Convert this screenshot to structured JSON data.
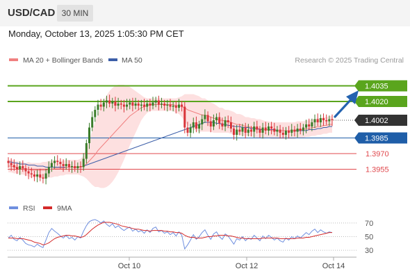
{
  "header": {
    "symbol": "USD/CAD",
    "timeframe": "30 MIN",
    "datetime": "Monday, October 13, 2025 1:05:30 PM CET"
  },
  "legend": {
    "ma20_label": "MA 20 + Bollinger Bands",
    "ma50_label": "MA 50",
    "copyright": "Research © 2025 Trading Central",
    "rsi_label": "RSI",
    "rsi_ma_label": "9MA"
  },
  "colors": {
    "up_candle": "#3a7d2a",
    "down_candle": "#d9343a",
    "ma20": "#f08080",
    "ma50": "#3c5ea8",
    "bollinger_fill": "#fde0e0",
    "resistance": "#5aa51d",
    "support_blue": "#1f5ea8",
    "support_red": "#e0484d",
    "current_price": "#333333",
    "rsi_line": "#6f8fdf",
    "rsi_ma_line": "#d42a2a",
    "arrow": "#2463b0"
  },
  "chart_data": [
    {
      "type": "candlestick",
      "title": "USD/CAD 30 MIN",
      "ylim": [
        1.3934,
        1.4054
      ],
      "x_ticks": [
        "Oct 10",
        "Oct 12",
        "Oct 14"
      ],
      "levels": [
        {
          "value": 1.4035,
          "label": "1.4035",
          "kind": "resistance"
        },
        {
          "value": 1.402,
          "label": "1.4020",
          "kind": "resistance"
        },
        {
          "value": 1.4002,
          "label": "1.4002",
          "kind": "current"
        },
        {
          "value": 1.3985,
          "label": "1.3985",
          "kind": "support"
        },
        {
          "value": 1.397,
          "label": "1.3970",
          "kind": "support-minor"
        },
        {
          "value": 1.3955,
          "label": "1.3955",
          "kind": "support-minor"
        }
      ],
      "close_series": [
        1.3961,
        1.3959,
        1.3957,
        1.3955,
        1.3958,
        1.3956,
        1.3953,
        1.3951,
        1.395,
        1.3948,
        1.395,
        1.3947,
        1.3946,
        1.3951,
        1.3957,
        1.3961,
        1.3963,
        1.3962,
        1.396,
        1.3958,
        1.396,
        1.3957,
        1.3958,
        1.3956,
        1.3958,
        1.3957,
        1.3965,
        1.398,
        1.3995,
        1.4005,
        1.4012,
        1.4017,
        1.4015,
        1.4019,
        1.4021,
        1.4018,
        1.402,
        1.4016,
        1.4018,
        1.4017,
        1.4015,
        1.4017,
        1.4019,
        1.4016,
        1.4018,
        1.4016,
        1.4017,
        1.4015,
        1.4018,
        1.4016,
        1.4019,
        1.4021,
        1.4017,
        1.4018,
        1.4016,
        1.4017,
        1.4015,
        1.4016,
        1.4014,
        1.4017,
        1.4015,
        1.3995,
        1.399,
        1.3995,
        1.4,
        1.3994,
        1.3998,
        1.4003,
        1.4007,
        1.4001,
        1.3996,
        1.4002,
        1.4005,
        1.3999,
        1.3996,
        1.4002,
        1.4,
        1.3994,
        1.3988,
        1.3993,
        1.3991,
        1.3995,
        1.399,
        1.3993,
        1.3991,
        1.3996,
        1.3993,
        1.399,
        1.3995,
        1.3992,
        1.3996,
        1.3994,
        1.3991,
        1.3993,
        1.399,
        1.3988,
        1.3992,
        1.399,
        1.3993,
        1.3991,
        1.3994,
        1.3992,
        1.3995,
        1.3998,
        1.3996,
        1.4,
        1.4003,
        1.4,
        1.4004,
        1.4002,
        1.4001,
        1.4003,
        1.4002
      ],
      "ma20_series": [
        1.3958,
        1.3958,
        1.3957,
        1.3957,
        1.3956,
        1.3956,
        1.3955,
        1.3955,
        1.3954,
        1.3954,
        1.3954,
        1.3954,
        1.3954,
        1.3954,
        1.3955,
        1.3955,
        1.3956,
        1.3956,
        1.3956,
        1.3956,
        1.3957,
        1.3957,
        1.3957,
        1.3957,
        1.3957,
        1.3957,
        1.3958,
        1.396,
        1.3963,
        1.3966,
        1.3969,
        1.3973,
        1.3976,
        1.3979,
        1.3982,
        1.3985,
        1.3988,
        1.3991,
        1.3994,
        1.3997,
        1.4,
        1.4003,
        1.4006,
        1.4008,
        1.401,
        1.4012,
        1.4014,
        1.4015,
        1.4016,
        1.4017,
        1.4017,
        1.4017,
        1.4017,
        1.4017,
        1.4017,
        1.4017,
        1.4017,
        1.4017,
        1.4016,
        1.4016,
        1.4015,
        1.4014,
        1.4012,
        1.4011,
        1.401,
        1.4009,
        1.4008,
        1.4007,
        1.4007,
        1.4006,
        1.4005,
        1.4004,
        1.4003,
        1.4002,
        1.4002,
        1.4001,
        1.4001,
        1.4,
        1.3999,
        1.3998,
        1.3998,
        1.3997,
        1.3996,
        1.3996,
        1.3995,
        1.3995,
        1.3994,
        1.3994,
        1.3993,
        1.3993,
        1.3993,
        1.3992,
        1.3992,
        1.3992,
        1.3992,
        1.3992,
        1.3992,
        1.3992,
        1.3992,
        1.3992,
        1.3993,
        1.3993,
        1.3993,
        1.3994,
        1.3994,
        1.3995,
        1.3995,
        1.3996,
        1.3996,
        1.3997,
        1.3997,
        1.3998,
        1.3998
      ],
      "ma50_series": [
        1.3962,
        1.3962,
        1.3961,
        1.3961,
        1.396,
        1.396,
        1.396,
        1.3959,
        1.3959,
        1.3959,
        1.3958,
        1.3958,
        1.3958,
        1.3957,
        1.3957,
        1.3957,
        1.3957,
        1.3957,
        1.3957,
        1.3957,
        1.3957,
        1.3957,
        1.3957,
        1.3957,
        1.3957,
        1.3957,
        1.3958,
        1.3959,
        1.396,
        1.3961,
        1.3962,
        1.3963,
        1.3964,
        1.3965,
        1.3966,
        1.3967,
        1.3968,
        1.3969,
        1.397,
        1.3971,
        1.3972,
        1.3973,
        1.3974,
        1.3975,
        1.3976,
        1.3977,
        1.3978,
        1.3979,
        1.398,
        1.3981,
        1.3982,
        1.3983,
        1.3984,
        1.3985,
        1.3986,
        1.3987,
        1.3988,
        1.3989,
        1.399,
        1.3991,
        1.3992,
        1.3993,
        1.3994,
        1.3995,
        1.3996,
        1.3997,
        1.3998,
        1.3999,
        1.4,
        1.4,
        1.4,
        1.4,
        1.3999,
        1.3999,
        1.3998,
        1.3998,
        1.3997,
        1.3997,
        1.3996,
        1.3996,
        1.3996,
        1.3995,
        1.3995,
        1.3995,
        1.3994,
        1.3994,
        1.3994,
        1.3993,
        1.3993,
        1.3993,
        1.3993,
        1.3993,
        1.3993,
        1.3992,
        1.3992,
        1.3992,
        1.3992,
        1.3992,
        1.3992,
        1.3992,
        1.3992,
        1.3992,
        1.3992,
        1.3992,
        1.3993,
        1.3993,
        1.3993,
        1.3994,
        1.3994,
        1.3995,
        1.3995,
        1.3996,
        1.3996
      ],
      "bollinger_width_series": [
        0.0006,
        0.0006,
        0.0006,
        0.0006,
        0.0006,
        0.0006,
        0.0006,
        0.0007,
        0.0007,
        0.0007,
        0.0007,
        0.0007,
        0.0008,
        0.0008,
        0.0008,
        0.0008,
        0.0008,
        0.0008,
        0.0007,
        0.0007,
        0.0007,
        0.0007,
        0.0007,
        0.0007,
        0.0007,
        0.0008,
        0.001,
        0.0014,
        0.002,
        0.0026,
        0.0031,
        0.0035,
        0.0039,
        0.0042,
        0.0044,
        0.0045,
        0.0045,
        0.0044,
        0.0042,
        0.0039,
        0.0036,
        0.0032,
        0.0028,
        0.0024,
        0.002,
        0.0016,
        0.0012,
        0.0009,
        0.0007,
        0.0006,
        0.0006,
        0.0006,
        0.0006,
        0.0006,
        0.0006,
        0.0006,
        0.0006,
        0.0006,
        0.0007,
        0.0008,
        0.001,
        0.0013,
        0.0015,
        0.0016,
        0.0017,
        0.0017,
        0.0017,
        0.0016,
        0.0016,
        0.0015,
        0.0014,
        0.0014,
        0.0013,
        0.0012,
        0.0012,
        0.0011,
        0.0011,
        0.0011,
        0.0011,
        0.001,
        0.001,
        0.001,
        0.0009,
        0.0009,
        0.0009,
        0.0009,
        0.0009,
        0.0009,
        0.0009,
        0.0008,
        0.0008,
        0.0008,
        0.0008,
        0.0008,
        0.0008,
        0.0008,
        0.0008,
        0.0008,
        0.0008,
        0.0008,
        0.0008,
        0.0008,
        0.0008,
        0.0008,
        0.0008,
        0.0008,
        0.0008,
        0.0008,
        0.0008,
        0.0008,
        0.0008,
        0.0008,
        0.0008
      ]
    },
    {
      "type": "line",
      "title": "RSI",
      "ylim": [
        20,
        80
      ],
      "y_ticks": [
        70,
        50,
        30
      ],
      "series": [
        {
          "name": "RSI",
          "values": [
            48,
            52,
            46,
            44,
            49,
            45,
            40,
            38,
            37,
            35,
            39,
            36,
            34,
            45,
            56,
            62,
            58,
            55,
            51,
            48,
            52,
            47,
            49,
            45,
            50,
            48,
            58,
            66,
            72,
            74,
            75,
            73,
            70,
            73,
            68,
            65,
            69,
            63,
            66,
            62,
            59,
            62,
            64,
            58,
            61,
            57,
            59,
            55,
            60,
            56,
            62,
            64,
            57,
            59,
            55,
            57,
            53,
            56,
            51,
            57,
            52,
            32,
            38,
            45,
            53,
            46,
            50,
            56,
            60,
            52,
            46,
            54,
            57,
            50,
            46,
            54,
            51,
            45,
            39,
            47,
            45,
            50,
            44,
            48,
            46,
            52,
            48,
            44,
            51,
            47,
            52,
            49,
            45,
            48,
            44,
            42,
            48,
            45,
            50,
            47,
            51,
            48,
            52,
            56,
            53,
            58,
            61,
            56,
            60,
            57,
            55,
            57,
            56
          ]
        },
        {
          "name": "9MA",
          "values": [
            48,
            48,
            48,
            47,
            47,
            47,
            46,
            45,
            44,
            42,
            41,
            40,
            38,
            39,
            41,
            44,
            47,
            49,
            50,
            51,
            52,
            52,
            51,
            51,
            50,
            49,
            50,
            53,
            57,
            61,
            64,
            67,
            69,
            71,
            71,
            71,
            70,
            69,
            68,
            66,
            65,
            64,
            63,
            62,
            61,
            61,
            60,
            59,
            59,
            58,
            59,
            59,
            59,
            59,
            58,
            58,
            57,
            57,
            56,
            56,
            55,
            52,
            50,
            49,
            49,
            48,
            48,
            48,
            49,
            50,
            50,
            51,
            51,
            52,
            52,
            52,
            51,
            51,
            50,
            49,
            48,
            48,
            47,
            47,
            47,
            47,
            47,
            47,
            48,
            48,
            48,
            48,
            48,
            48,
            47,
            47,
            47,
            47,
            47,
            47,
            48,
            48,
            48,
            49,
            49,
            50,
            51,
            52,
            53,
            54,
            55,
            56,
            56
          ]
        }
      ]
    }
  ]
}
